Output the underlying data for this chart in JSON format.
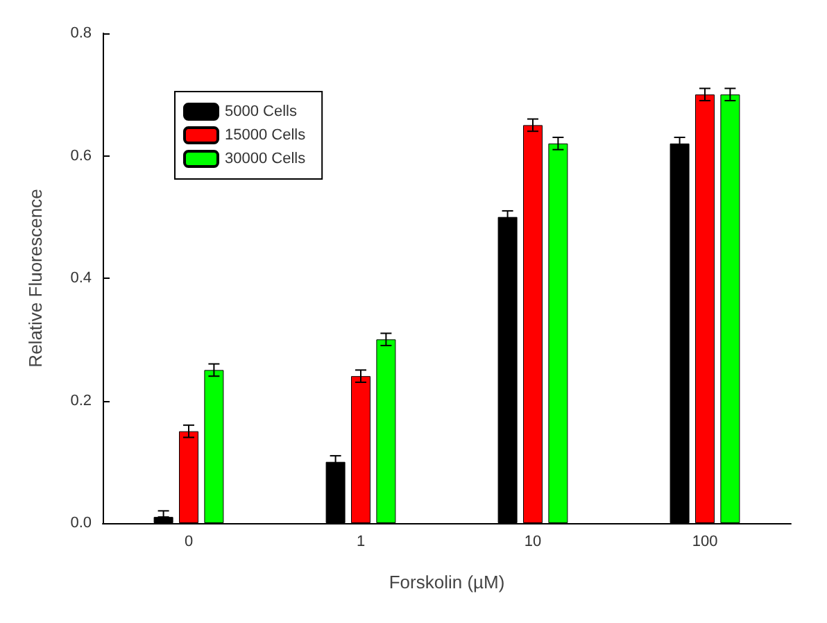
{
  "chart_data": {
    "type": "bar",
    "xlabel": "Forskolin (µM)",
    "ylabel": "Relative Fluorescence",
    "categories": [
      "0",
      "1",
      "10",
      "100"
    ],
    "series": [
      {
        "name": "5000 Cells",
        "color": "#000000",
        "values": [
          0.01,
          0.1,
          0.5,
          0.62
        ],
        "errors": [
          [
            0.01,
            0.02
          ],
          0.01,
          0.01,
          0.01
        ]
      },
      {
        "name": "15000 Cells",
        "color": "#ff0000",
        "values": [
          0.15,
          0.24,
          0.65,
          0.7
        ],
        "errors": [
          0.01,
          0.01,
          0.01,
          0.01
        ]
      },
      {
        "name": "30000 Cells",
        "color": "#00ff00",
        "values": [
          0.25,
          0.3,
          0.62,
          0.7
        ],
        "errors": [
          0.01,
          0.01,
          0.01,
          0.01
        ]
      }
    ],
    "ylim": [
      0,
      0.8
    ],
    "yticks": [
      {
        "value": 0,
        "label": "0.0"
      },
      {
        "value": 0.2,
        "label": "0.2"
      },
      {
        "value": 0.4,
        "label": "0.4"
      },
      {
        "value": 0.6,
        "label": "0.6"
      },
      {
        "value": 0.8,
        "label": "0.8"
      }
    ],
    "legend": "top left",
    "grid": false
  }
}
